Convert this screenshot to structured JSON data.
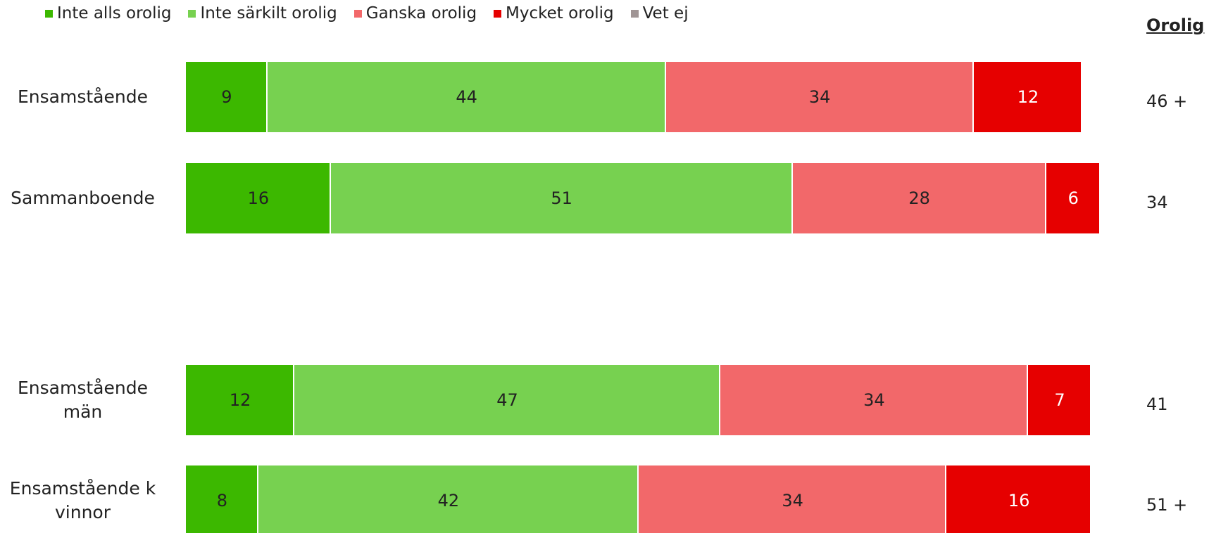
{
  "chart_data": {
    "type": "stacked_barh",
    "categories": [
      "Ensamstående",
      "Sammanboende",
      null,
      "Ensamstående män",
      "Ensamstående kvinnor"
    ],
    "series": [
      {
        "name": "Inte alls orolig",
        "color": "#3cb800",
        "values": [
          9,
          16,
          null,
          12,
          8
        ]
      },
      {
        "name": "Inte särkilt orolig",
        "color": "#77d150",
        "values": [
          44,
          51,
          null,
          47,
          42
        ]
      },
      {
        "name": "Ganska orolig",
        "color": "#f2686a",
        "values": [
          34,
          28,
          null,
          34,
          34
        ]
      },
      {
        "name": "Mycket orolig",
        "color": "#e60000",
        "values": [
          12,
          6,
          null,
          7,
          16
        ]
      },
      {
        "name": "Vet ej",
        "color": "#a09595",
        "values": [
          0,
          0,
          null,
          0,
          0
        ]
      }
    ],
    "xlim": [
      0,
      100
    ],
    "orolig": {
      "title": "Orolig",
      "values": [
        46,
        34,
        null,
        41,
        51
      ],
      "value_labels": [
        "46 +",
        "34",
        null,
        "41",
        "51 +"
      ]
    }
  }
}
